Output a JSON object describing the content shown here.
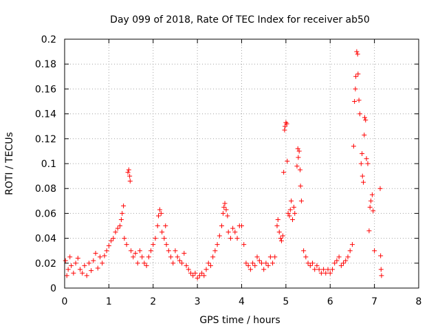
{
  "chart_data": {
    "type": "scatter",
    "title": "Day 099 of 2018, Rate Of TEC Index for receiver ab50",
    "xlabel": "GPS time / hours",
    "ylabel": "ROTI / TECUs",
    "xlim": [
      0,
      8
    ],
    "ylim": [
      0,
      0.2
    ],
    "x_ticks": [
      "0",
      "1",
      "2",
      "3",
      "4",
      "5",
      "6",
      "7",
      "8"
    ],
    "y_ticks": [
      "0",
      "0.02",
      "0.04",
      "0.06",
      "0.08",
      "0.1",
      "0.12",
      "0.14",
      "0.16",
      "0.18",
      "0.2"
    ],
    "grid": true,
    "marker": "+",
    "color": "#ff0000",
    "series": [
      {
        "name": "ROTI",
        "points": [
          [
            0.02,
            0.022
          ],
          [
            0.05,
            0.01
          ],
          [
            0.08,
            0.015
          ],
          [
            0.12,
            0.025
          ],
          [
            0.15,
            0.018
          ],
          [
            0.2,
            0.012
          ],
          [
            0.25,
            0.02
          ],
          [
            0.3,
            0.024
          ],
          [
            0.35,
            0.015
          ],
          [
            0.4,
            0.012
          ],
          [
            0.45,
            0.018
          ],
          [
            0.5,
            0.01
          ],
          [
            0.55,
            0.02
          ],
          [
            0.6,
            0.014
          ],
          [
            0.65,
            0.022
          ],
          [
            0.7,
            0.028
          ],
          [
            0.75,
            0.016
          ],
          [
            0.8,
            0.025
          ],
          [
            0.85,
            0.02
          ],
          [
            0.9,
            0.026
          ],
          [
            0.95,
            0.03
          ],
          [
            1.0,
            0.034
          ],
          [
            1.05,
            0.038
          ],
          [
            1.1,
            0.04
          ],
          [
            1.15,
            0.045
          ],
          [
            1.2,
            0.048
          ],
          [
            1.25,
            0.05
          ],
          [
            1.28,
            0.055
          ],
          [
            1.3,
            0.06
          ],
          [
            1.33,
            0.066
          ],
          [
            1.35,
            0.04
          ],
          [
            1.4,
            0.035
          ],
          [
            1.43,
            0.093
          ],
          [
            1.45,
            0.095
          ],
          [
            1.47,
            0.09
          ],
          [
            1.48,
            0.086
          ],
          [
            1.5,
            0.03
          ],
          [
            1.55,
            0.025
          ],
          [
            1.6,
            0.028
          ],
          [
            1.65,
            0.02
          ],
          [
            1.7,
            0.03
          ],
          [
            1.75,
            0.025
          ],
          [
            1.8,
            0.02
          ],
          [
            1.85,
            0.018
          ],
          [
            1.9,
            0.025
          ],
          [
            1.95,
            0.03
          ],
          [
            2.0,
            0.035
          ],
          [
            2.05,
            0.04
          ],
          [
            2.1,
            0.05
          ],
          [
            2.12,
            0.058
          ],
          [
            2.15,
            0.063
          ],
          [
            2.18,
            0.06
          ],
          [
            2.2,
            0.045
          ],
          [
            2.25,
            0.04
          ],
          [
            2.28,
            0.05
          ],
          [
            2.3,
            0.035
          ],
          [
            2.35,
            0.03
          ],
          [
            2.4,
            0.025
          ],
          [
            2.45,
            0.02
          ],
          [
            2.5,
            0.03
          ],
          [
            2.55,
            0.025
          ],
          [
            2.6,
            0.022
          ],
          [
            2.65,
            0.02
          ],
          [
            2.7,
            0.028
          ],
          [
            2.75,
            0.018
          ],
          [
            2.8,
            0.015
          ],
          [
            2.85,
            0.012
          ],
          [
            2.9,
            0.01
          ],
          [
            2.95,
            0.012
          ],
          [
            3.0,
            0.008
          ],
          [
            3.05,
            0.01
          ],
          [
            3.1,
            0.012
          ],
          [
            3.15,
            0.01
          ],
          [
            3.2,
            0.015
          ],
          [
            3.25,
            0.02
          ],
          [
            3.3,
            0.018
          ],
          [
            3.35,
            0.025
          ],
          [
            3.4,
            0.03
          ],
          [
            3.45,
            0.035
          ],
          [
            3.5,
            0.042
          ],
          [
            3.55,
            0.05
          ],
          [
            3.58,
            0.06
          ],
          [
            3.6,
            0.065
          ],
          [
            3.62,
            0.068
          ],
          [
            3.65,
            0.063
          ],
          [
            3.68,
            0.058
          ],
          [
            3.7,
            0.045
          ],
          [
            3.75,
            0.04
          ],
          [
            3.8,
            0.048
          ],
          [
            3.85,
            0.045
          ],
          [
            3.9,
            0.04
          ],
          [
            3.95,
            0.05
          ],
          [
            4.0,
            0.05
          ],
          [
            4.05,
            0.035
          ],
          [
            4.1,
            0.02
          ],
          [
            4.15,
            0.018
          ],
          [
            4.2,
            0.015
          ],
          [
            4.25,
            0.02
          ],
          [
            4.3,
            0.018
          ],
          [
            4.35,
            0.025
          ],
          [
            4.4,
            0.022
          ],
          [
            4.45,
            0.02
          ],
          [
            4.5,
            0.015
          ],
          [
            4.55,
            0.02
          ],
          [
            4.6,
            0.018
          ],
          [
            4.65,
            0.025
          ],
          [
            4.7,
            0.02
          ],
          [
            4.75,
            0.025
          ],
          [
            4.8,
            0.05
          ],
          [
            4.82,
            0.055
          ],
          [
            4.85,
            0.045
          ],
          [
            4.88,
            0.04
          ],
          [
            4.9,
            0.038
          ],
          [
            4.93,
            0.042
          ],
          [
            4.95,
            0.093
          ],
          [
            4.97,
            0.127
          ],
          [
            4.98,
            0.13
          ],
          [
            5.0,
            0.133
          ],
          [
            5.02,
            0.132
          ],
          [
            5.03,
            0.102
          ],
          [
            5.05,
            0.06
          ],
          [
            5.08,
            0.058
          ],
          [
            5.1,
            0.063
          ],
          [
            5.12,
            0.07
          ],
          [
            5.15,
            0.055
          ],
          [
            5.18,
            0.065
          ],
          [
            5.2,
            0.06
          ],
          [
            5.25,
            0.098
          ],
          [
            5.27,
            0.112
          ],
          [
            5.28,
            0.105
          ],
          [
            5.3,
            0.11
          ],
          [
            5.32,
            0.095
          ],
          [
            5.33,
            0.082
          ],
          [
            5.35,
            0.07
          ],
          [
            5.4,
            0.03
          ],
          [
            5.45,
            0.025
          ],
          [
            5.5,
            0.02
          ],
          [
            5.55,
            0.018
          ],
          [
            5.6,
            0.02
          ],
          [
            5.65,
            0.015
          ],
          [
            5.7,
            0.018
          ],
          [
            5.75,
            0.015
          ],
          [
            5.8,
            0.012
          ],
          [
            5.85,
            0.015
          ],
          [
            5.9,
            0.012
          ],
          [
            5.95,
            0.015
          ],
          [
            6.0,
            0.012
          ],
          [
            6.05,
            0.015
          ],
          [
            6.1,
            0.02
          ],
          [
            6.15,
            0.022
          ],
          [
            6.2,
            0.025
          ],
          [
            6.25,
            0.018
          ],
          [
            6.3,
            0.02
          ],
          [
            6.35,
            0.022
          ],
          [
            6.4,
            0.025
          ],
          [
            6.45,
            0.03
          ],
          [
            6.5,
            0.035
          ],
          [
            6.53,
            0.114
          ],
          [
            6.55,
            0.15
          ],
          [
            6.57,
            0.16
          ],
          [
            6.58,
            0.17
          ],
          [
            6.6,
            0.19
          ],
          [
            6.62,
            0.188
          ],
          [
            6.63,
            0.172
          ],
          [
            6.65,
            0.151
          ],
          [
            6.67,
            0.14
          ],
          [
            6.7,
            0.1
          ],
          [
            6.72,
            0.108
          ],
          [
            6.73,
            0.09
          ],
          [
            6.75,
            0.085
          ],
          [
            6.77,
            0.123
          ],
          [
            6.78,
            0.137
          ],
          [
            6.8,
            0.135
          ],
          [
            6.82,
            0.104
          ],
          [
            6.85,
            0.1
          ],
          [
            6.88,
            0.046
          ],
          [
            6.9,
            0.065
          ],
          [
            6.92,
            0.07
          ],
          [
            6.95,
            0.075
          ],
          [
            6.97,
            0.062
          ],
          [
            7.0,
            0.03
          ],
          [
            7.13,
            0.08
          ],
          [
            7.14,
            0.026
          ],
          [
            7.15,
            0.015
          ],
          [
            7.16,
            0.01
          ]
        ]
      }
    ]
  }
}
